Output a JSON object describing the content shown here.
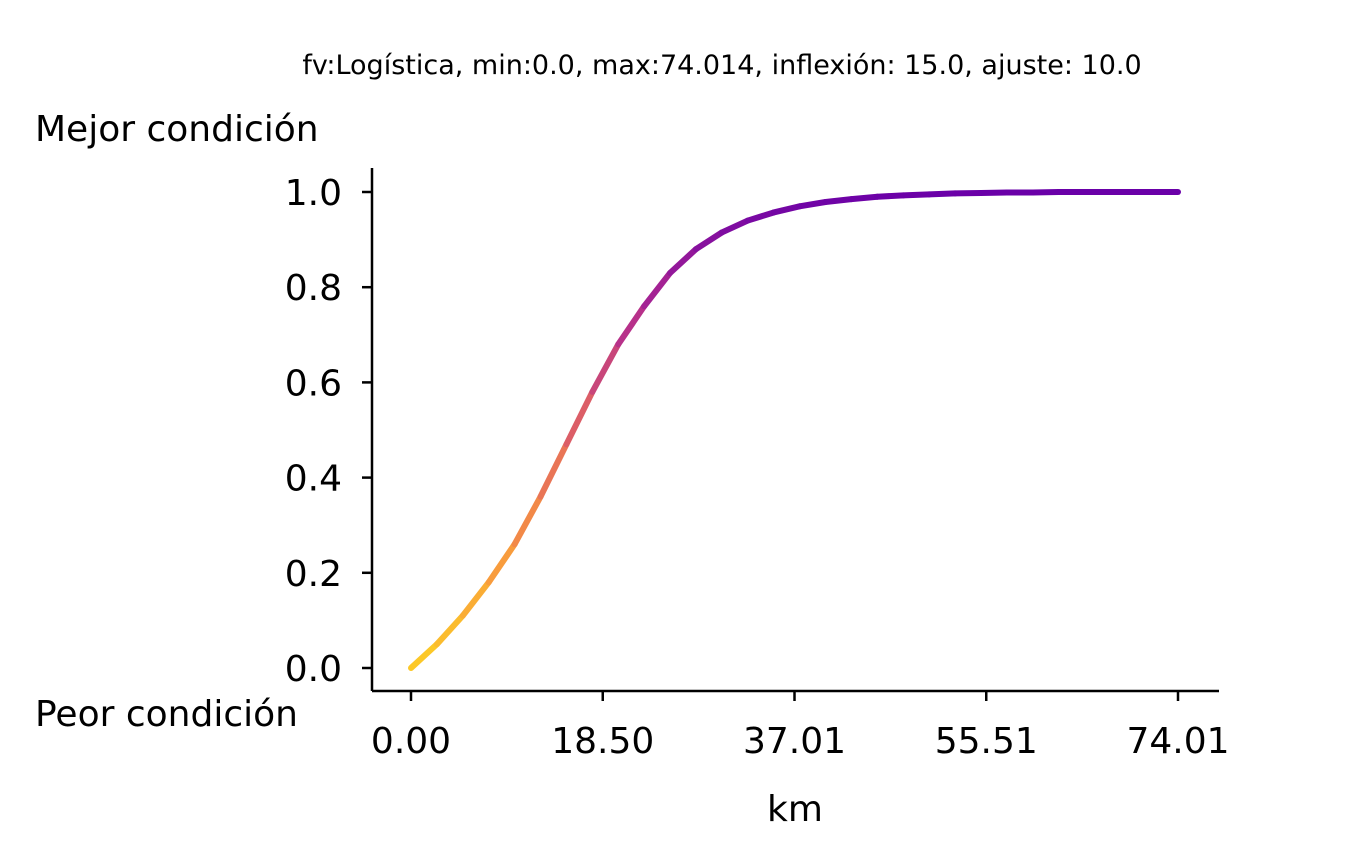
{
  "chart_data": {
    "type": "line",
    "title": "fv:Logística, min:0.0, max:74.014, inflexión: 15.0, ajuste: 10.0",
    "xlabel": "km",
    "ylabel": "",
    "top_label": "Mejor condición",
    "bottom_label": "Peor condición",
    "xlim": [
      0,
      74.014
    ],
    "ylim": [
      0,
      1.0
    ],
    "x_ticks": [
      "0.00",
      "18.50",
      "37.01",
      "55.51",
      "74.01"
    ],
    "x_tick_values": [
      0,
      18.5035,
      37.007,
      55.5105,
      74.014
    ],
    "y_ticks": [
      "0.0",
      "0.2",
      "0.4",
      "0.6",
      "0.8",
      "1.0"
    ],
    "y_tick_values": [
      0.0,
      0.2,
      0.4,
      0.6,
      0.8,
      1.0
    ],
    "grid": false,
    "colormap": [
      "#fcce25",
      "#f89540",
      "#e16462",
      "#b12a90",
      "#6a00a8"
    ],
    "series": [
      {
        "x": [
          0,
          2.5,
          5,
          7.5,
          10,
          12.5,
          15,
          17.5,
          20,
          22.5,
          25,
          27.5,
          30,
          32.5,
          35,
          37.5,
          40,
          42.5,
          45,
          47.5,
          50,
          52.5,
          55,
          57.5,
          60,
          62.5,
          65,
          67.5,
          70,
          72.5,
          74.014
        ],
        "y": [
          0.0,
          0.05,
          0.11,
          0.18,
          0.26,
          0.36,
          0.47,
          0.58,
          0.68,
          0.76,
          0.83,
          0.88,
          0.915,
          0.94,
          0.957,
          0.97,
          0.979,
          0.985,
          0.99,
          0.993,
          0.995,
          0.997,
          0.998,
          0.999,
          0.999,
          1.0,
          1.0,
          1.0,
          1.0,
          1.0,
          1.0
        ]
      }
    ]
  }
}
